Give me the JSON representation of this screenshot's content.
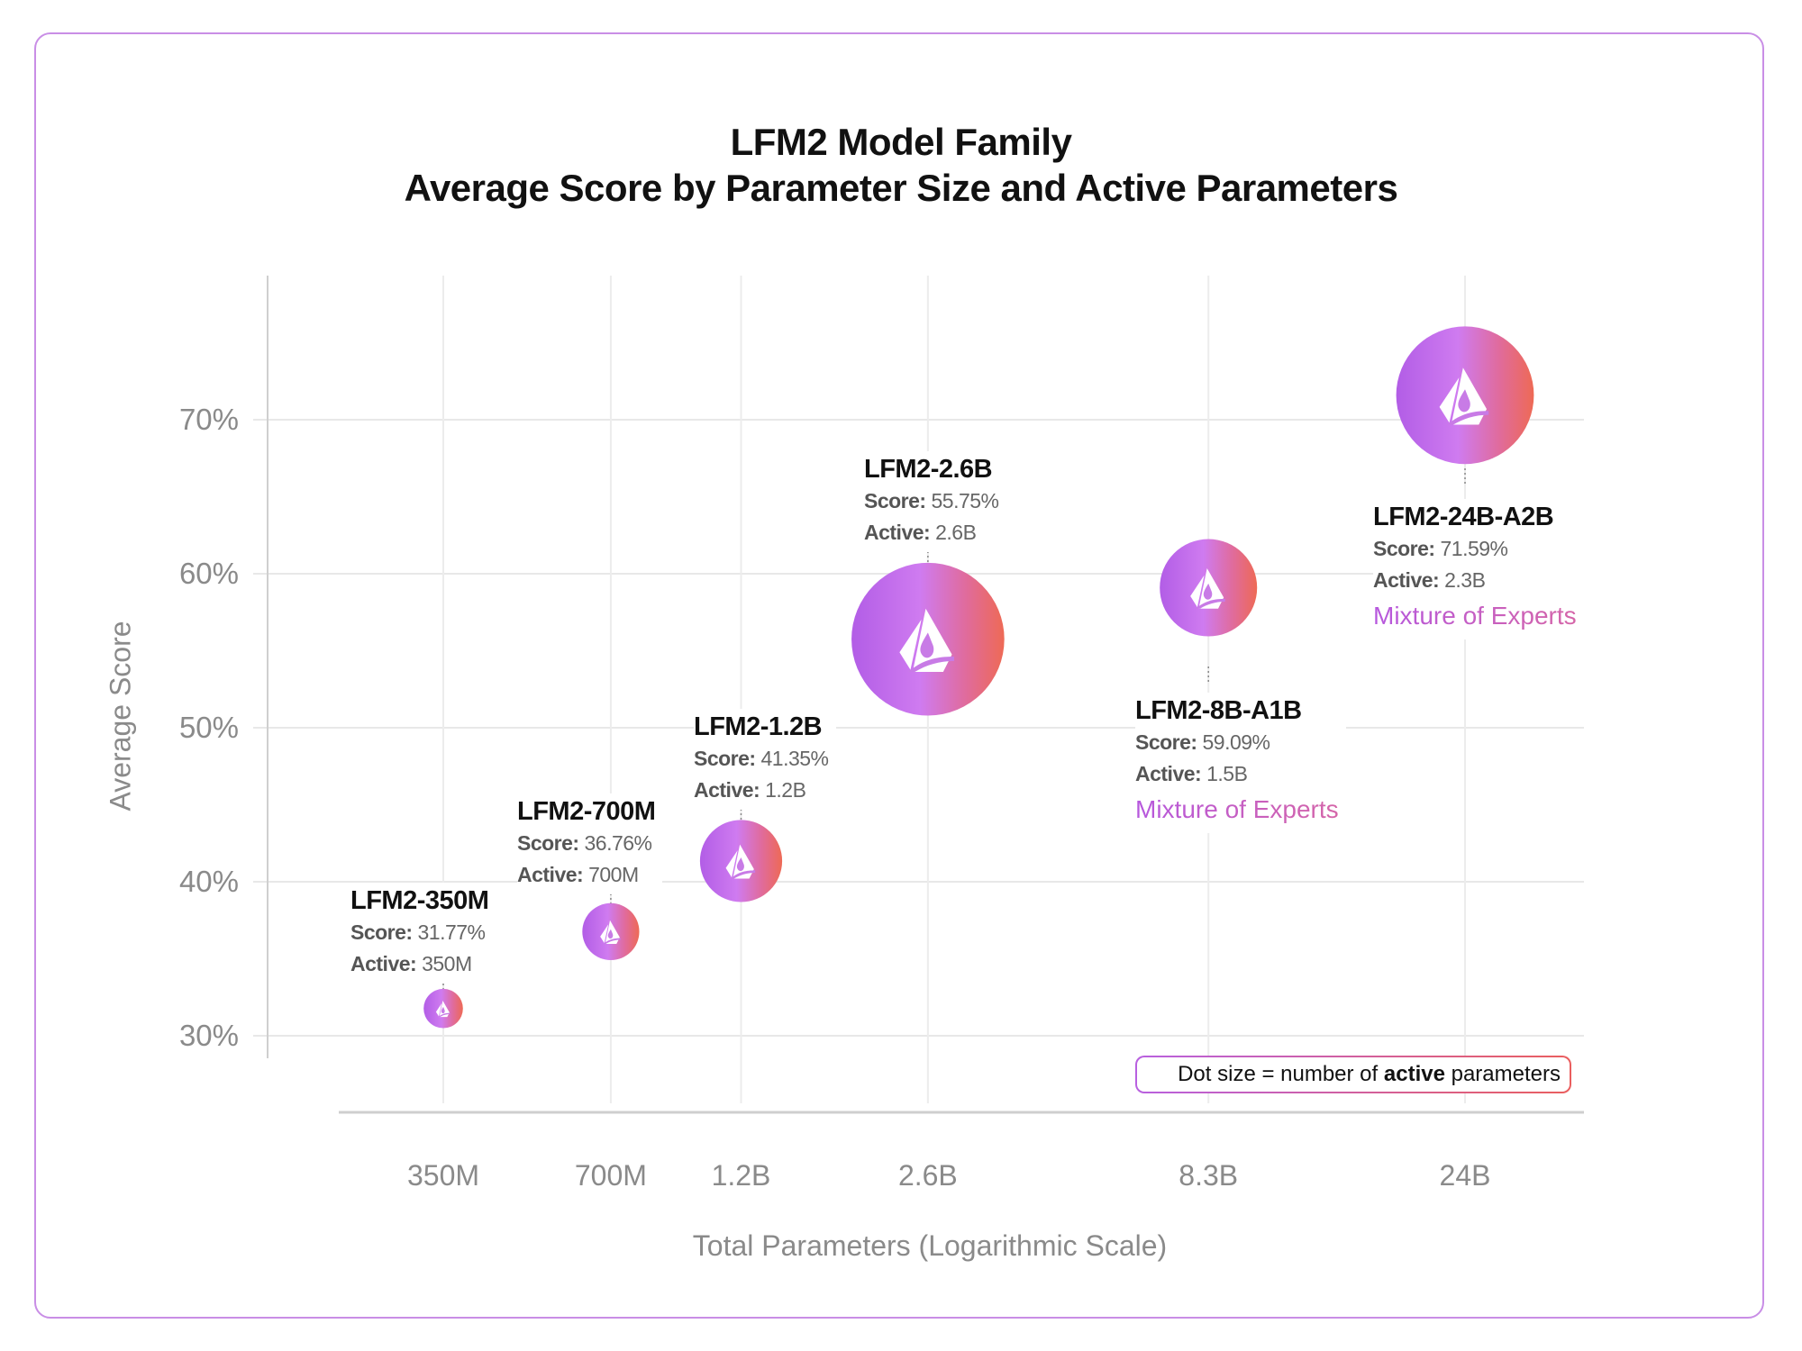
{
  "chart_data": {
    "type": "scatter",
    "title": "LFM2 Model Family",
    "subtitle": "Average Score by Parameter Size and Active Parameters",
    "xlabel": "Total Parameters (Logarithmic Scale)",
    "ylabel": "Average Score",
    "x_scale": "log",
    "x_ticks": [
      {
        "value": 350000000,
        "label": "350M"
      },
      {
        "value": 700000000,
        "label": "700M"
      },
      {
        "value": 1200000000,
        "label": "1.2B"
      },
      {
        "value": 2600000000,
        "label": "2.6B"
      },
      {
        "value": 8300000000,
        "label": "8.3B"
      },
      {
        "value": 24000000000,
        "label": "24B"
      }
    ],
    "y_ticks": [
      {
        "value": 30,
        "label": "30%"
      },
      {
        "value": 40,
        "label": "40%"
      },
      {
        "value": 50,
        "label": "50%"
      },
      {
        "value": 60,
        "label": "60%"
      },
      {
        "value": 70,
        "label": "70%"
      }
    ],
    "grid": true,
    "legend_note": {
      "prefix": "Dot size = number of ",
      "bold": "active",
      "suffix": " parameters",
      "placement": "bottom-right"
    },
    "points": [
      {
        "name": "LFM2-350M",
        "total_params": 350000000,
        "score": 31.77,
        "score_label": "31.77%",
        "active": 0.35,
        "active_label": "350M",
        "moe": ""
      },
      {
        "name": "LFM2-700M",
        "total_params": 700000000,
        "score": 36.76,
        "score_label": "36.76%",
        "active": 0.7,
        "active_label": "700M",
        "moe": ""
      },
      {
        "name": "LFM2-1.2B",
        "total_params": 1200000000,
        "score": 41.35,
        "score_label": "41.35%",
        "active": 1.2,
        "active_label": "1.2B",
        "moe": ""
      },
      {
        "name": "LFM2-2.6B",
        "total_params": 2600000000,
        "score": 55.75,
        "score_label": "55.75%",
        "active": 2.6,
        "active_label": "2.6B",
        "moe": ""
      },
      {
        "name": "LFM2-8B-A1B",
        "total_params": 8300000000,
        "score": 59.09,
        "score_label": "59.09%",
        "active": 1.5,
        "active_label": "1.5B",
        "moe": "Mixture of Experts"
      },
      {
        "name": "LFM2-24B-A2B",
        "total_params": 24000000000,
        "score": 71.59,
        "score_label": "71.59%",
        "active": 2.3,
        "active_label": "2.3B",
        "moe": "Mixture of Experts"
      }
    ],
    "score_prefix": "Score:",
    "active_prefix": "Active:",
    "colors": {
      "gradient_start": "#b25de6",
      "gradient_mid": "#cf7bf0",
      "gradient_end": "#ee6a55",
      "frame": "#c98ee6"
    }
  }
}
